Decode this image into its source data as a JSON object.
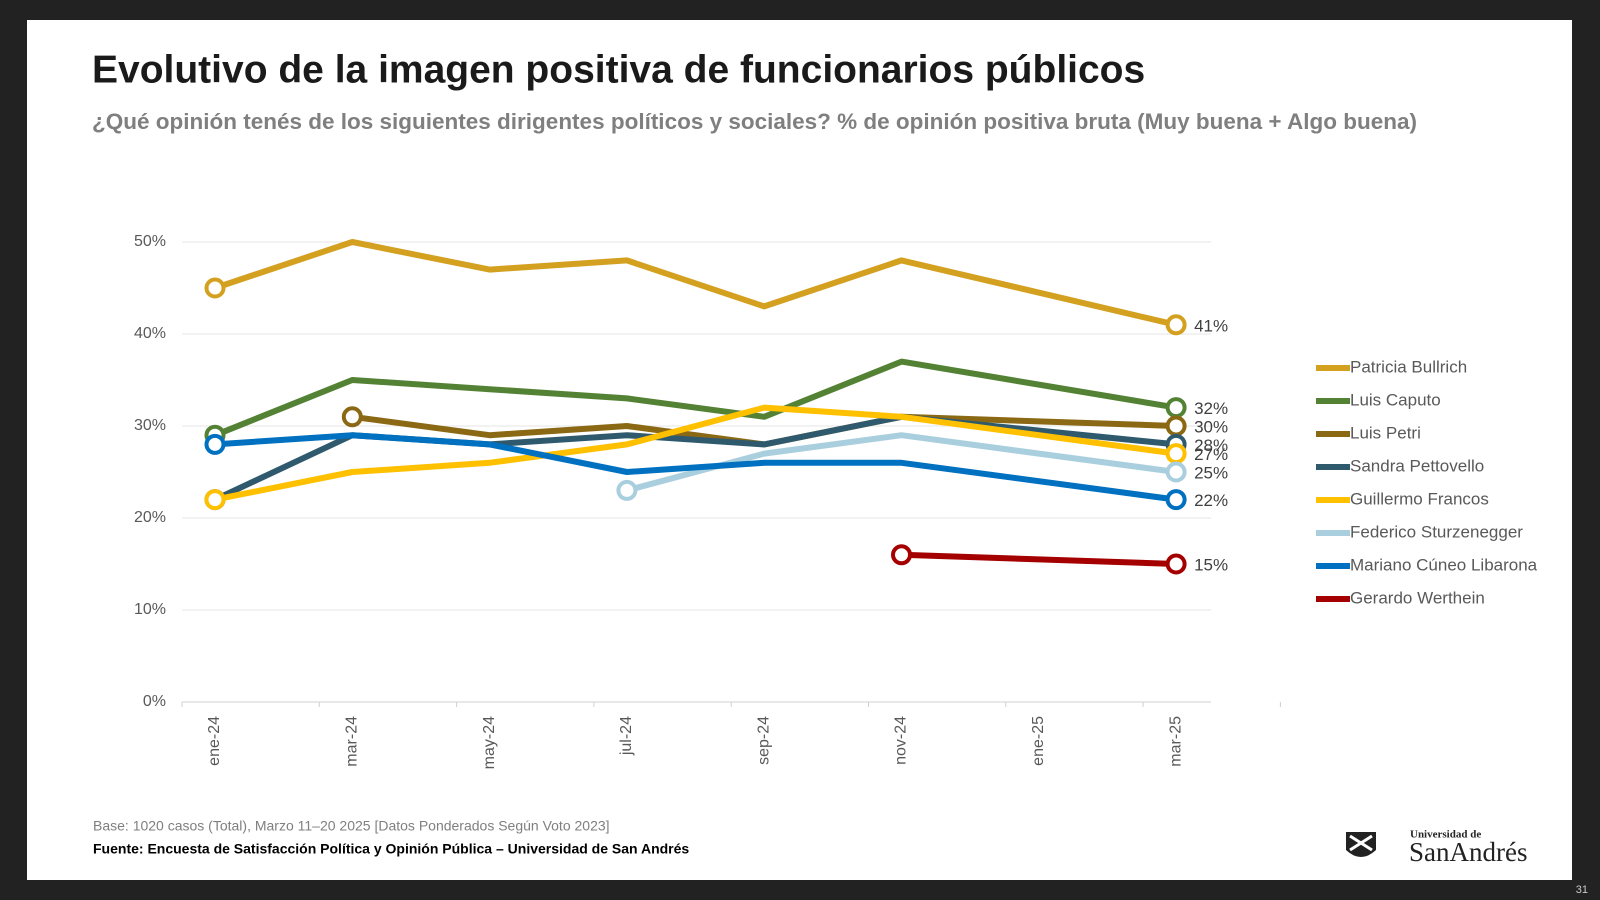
{
  "chart_data": {
    "type": "line",
    "title": "Evolutivo de la imagen positiva de funcionarios públicos",
    "subtitle": "¿Qué opinión tenés de los siguientes dirigentes políticos y sociales? % de opinión positiva bruta (Muy buena + Algo buena)",
    "categories": [
      "ene-24",
      "mar-24",
      "may-24",
      "jul-24",
      "sep-24",
      "nov-24",
      "ene-25",
      "mar-25"
    ],
    "ylim": [
      0,
      50
    ],
    "yticks": [
      {
        "value": 0,
        "label": "0%"
      },
      {
        "value": 10,
        "label": "10%"
      },
      {
        "value": 20,
        "label": "20%"
      },
      {
        "value": 30,
        "label": "30%"
      },
      {
        "value": 40,
        "label": "40%"
      },
      {
        "value": 50,
        "label": "50%"
      }
    ],
    "grid": true,
    "legend": "right",
    "series": [
      {
        "name": "Patricia Bullrich",
        "color": "#D4A020",
        "x": [
          "ene-24",
          "mar-24",
          "may-24",
          "jul-24",
          "sep-24",
          "nov-24",
          "mar-25"
        ],
        "values": [
          45,
          50,
          47,
          48,
          43,
          48,
          41
        ],
        "value_labels": [
          null,
          null,
          null,
          null,
          null,
          null,
          "41%"
        ]
      },
      {
        "name": "Luis Caputo",
        "color": "#548235",
        "x": [
          "ene-24",
          "mar-24",
          "may-24",
          "jul-24",
          "sep-24",
          "nov-24",
          "mar-25"
        ],
        "values": [
          29,
          35,
          34,
          33,
          31,
          37,
          32
        ],
        "value_labels": [
          null,
          null,
          null,
          null,
          null,
          null,
          "32%"
        ]
      },
      {
        "name": "Luis Petri",
        "color": "#8B6914",
        "x": [
          "mar-24",
          "may-24",
          "jul-24",
          "sep-24",
          "nov-24",
          "mar-25"
        ],
        "values": [
          31,
          29,
          30,
          28,
          31,
          30
        ],
        "value_labels": [
          null,
          null,
          null,
          null,
          null,
          "30%"
        ]
      },
      {
        "name": "Sandra Pettovello",
        "color": "#2F5A6E",
        "x": [
          "ene-24",
          "mar-24",
          "may-24",
          "jul-24",
          "sep-24",
          "nov-24",
          "mar-25"
        ],
        "values": [
          22,
          29,
          28,
          29,
          28,
          31,
          28
        ],
        "value_labels": [
          null,
          null,
          null,
          null,
          null,
          null,
          "28%"
        ]
      },
      {
        "name": "Guillermo Francos",
        "color": "#FFC000",
        "x": [
          "ene-24",
          "mar-24",
          "may-24",
          "jul-24",
          "sep-24",
          "nov-24",
          "mar-25"
        ],
        "values": [
          22,
          25,
          26,
          28,
          32,
          31,
          27
        ],
        "value_labels": [
          null,
          null,
          null,
          null,
          null,
          null,
          "27%"
        ]
      },
      {
        "name": "Federico Sturzenegger",
        "color": "#A9CFDF",
        "x": [
          "jul-24",
          "sep-24",
          "nov-24",
          "mar-25"
        ],
        "values": [
          23,
          27,
          29,
          25
        ],
        "value_labels": [
          null,
          null,
          null,
          "25%"
        ]
      },
      {
        "name": "Mariano Cúneo Libarona",
        "color": "#0070C0",
        "x": [
          "ene-24",
          "mar-24",
          "may-24",
          "jul-24",
          "sep-24",
          "nov-24",
          "mar-25"
        ],
        "values": [
          28,
          29,
          28,
          25,
          26,
          26,
          22
        ],
        "value_labels": [
          null,
          null,
          null,
          null,
          null,
          null,
          "22%"
        ]
      },
      {
        "name": "Gerardo Werthein",
        "color": "#A50000",
        "x": [
          "nov-24",
          "mar-25"
        ],
        "values": [
          16,
          15
        ],
        "value_labels": [
          null,
          "15%"
        ]
      }
    ]
  },
  "footer": {
    "base": "Base: 1020 casos (Total), Marzo 11–20 2025 [Datos Ponderados Según Voto 2023]",
    "source": "Fuente: Encuesta de Satisfacción Política y Opinión Pública – Universidad de San Andrés"
  },
  "logo": {
    "line1": "Universidad de",
    "line2": "SanAndrés"
  },
  "page_number": "31"
}
